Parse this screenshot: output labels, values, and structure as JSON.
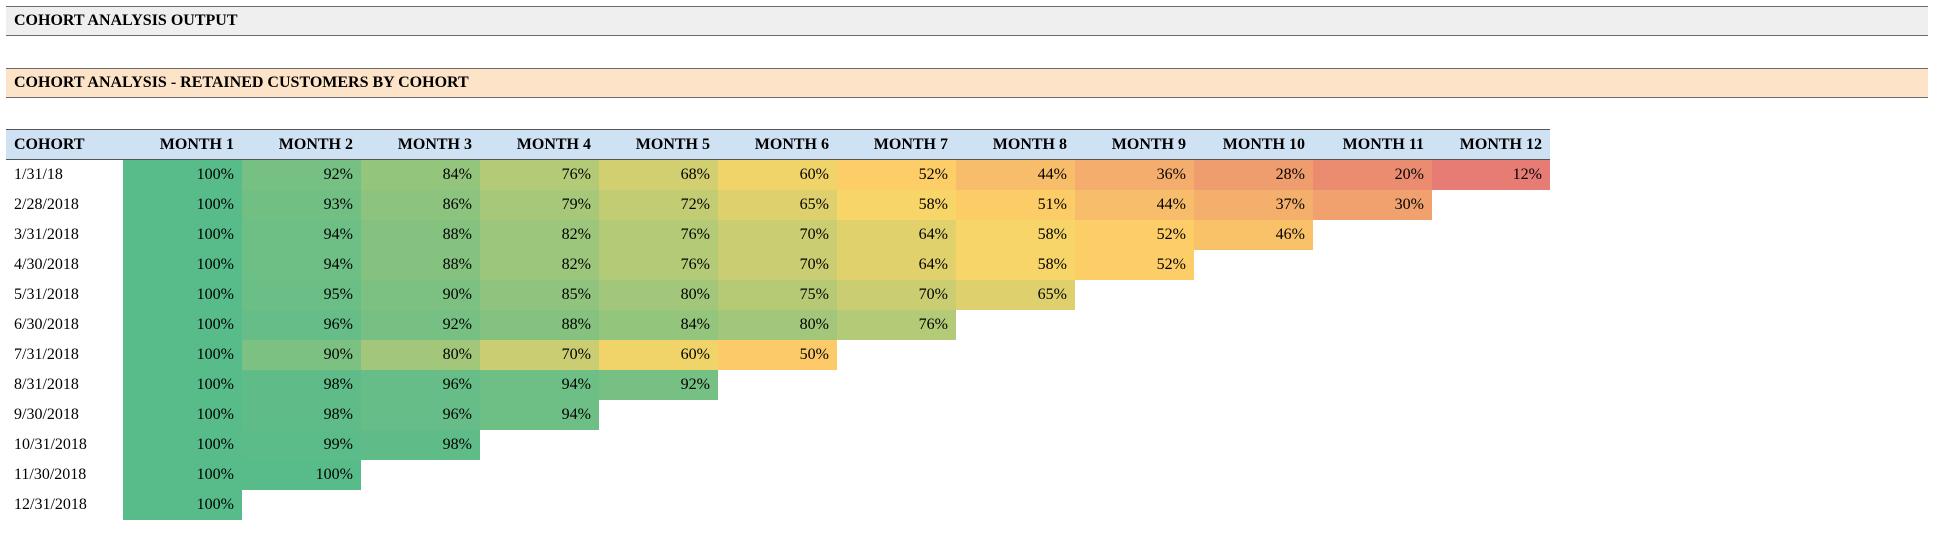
{
  "header": {
    "title": "COHORT ANALYSIS OUTPUT"
  },
  "section": {
    "title": "COHORT ANALYSIS - RETAINED CUSTOMERS BY COHORT"
  },
  "table": {
    "columns": [
      "COHORT",
      "MONTH 1",
      "MONTH 2",
      "MONTH 3",
      "MONTH 4",
      "MONTH 5",
      "MONTH 6",
      "MONTH 7",
      "MONTH 8",
      "MONTH 9",
      "MONTH 10",
      "MONTH 11",
      "MONTH 12"
    ],
    "rows": [
      {
        "cohort": "1/31/18",
        "values": [
          "100%",
          "92%",
          "84%",
          "76%",
          "68%",
          "60%",
          "52%",
          "44%",
          "36%",
          "28%",
          "20%",
          "12%"
        ]
      },
      {
        "cohort": "2/28/2018",
        "values": [
          "100%",
          "93%",
          "86%",
          "79%",
          "72%",
          "65%",
          "58%",
          "51%",
          "44%",
          "37%",
          "30%"
        ]
      },
      {
        "cohort": "3/31/2018",
        "values": [
          "100%",
          "94%",
          "88%",
          "82%",
          "76%",
          "70%",
          "64%",
          "58%",
          "52%",
          "46%"
        ]
      },
      {
        "cohort": "4/30/2018",
        "values": [
          "100%",
          "94%",
          "88%",
          "82%",
          "76%",
          "70%",
          "64%",
          "58%",
          "52%"
        ]
      },
      {
        "cohort": "5/31/2018",
        "values": [
          "100%",
          "95%",
          "90%",
          "85%",
          "80%",
          "75%",
          "70%",
          "65%"
        ]
      },
      {
        "cohort": "6/30/2018",
        "values": [
          "100%",
          "96%",
          "92%",
          "88%",
          "84%",
          "80%",
          "76%"
        ]
      },
      {
        "cohort": "7/31/2018",
        "values": [
          "100%",
          "90%",
          "80%",
          "70%",
          "60%",
          "50%"
        ]
      },
      {
        "cohort": "8/31/2018",
        "values": [
          "100%",
          "98%",
          "96%",
          "94%",
          "92%"
        ]
      },
      {
        "cohort": "9/30/2018",
        "values": [
          "100%",
          "98%",
          "96%",
          "94%"
        ]
      },
      {
        "cohort": "10/31/2018",
        "values": [
          "100%",
          "99%",
          "98%"
        ]
      },
      {
        "cohort": "11/30/2018",
        "values": [
          "100%",
          "100%"
        ]
      },
      {
        "cohort": "12/31/2018",
        "values": [
          "100%"
        ]
      }
    ]
  },
  "colors": {
    "header_bar": "#efefef",
    "section_bar": "#fde4c9",
    "column_header": "#cfe2f3",
    "scale_low": "#e67c73",
    "scale_mid": "#ffd666",
    "scale_high": "#57bb8a"
  }
}
